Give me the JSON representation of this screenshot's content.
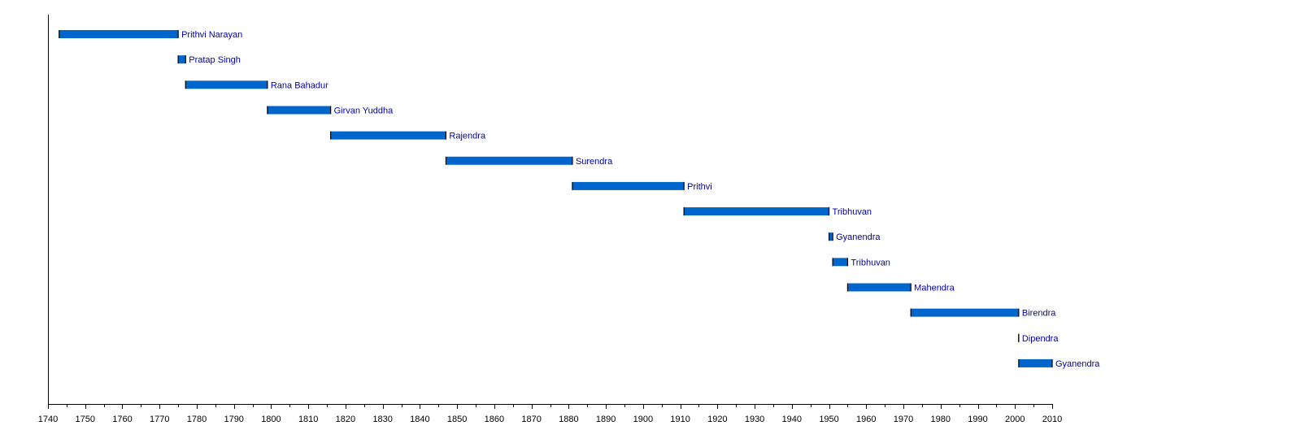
{
  "chart_data": {
    "type": "timeline",
    "xlim": [
      1740,
      2010
    ],
    "major_tick_step": 10,
    "minor_tick_step": 5,
    "tick_labels": [
      "1740",
      "1750",
      "1760",
      "1770",
      "1780",
      "1790",
      "1800",
      "1810",
      "1820",
      "1830",
      "1840",
      "1850",
      "1860",
      "1870",
      "1880",
      "1890",
      "1900",
      "1910",
      "1920",
      "1930",
      "1940",
      "1950",
      "1960",
      "1970",
      "1980",
      "1990",
      "2000",
      "2010"
    ],
    "grid": false,
    "bar_color": "#0066cc",
    "label_color": "#0000aa",
    "bars": [
      {
        "label": "Prithvi Narayan",
        "start": 1743,
        "end": 1775
      },
      {
        "label": "Pratap Singh",
        "start": 1775,
        "end": 1777
      },
      {
        "label": "Rana Bahadur",
        "start": 1777,
        "end": 1799
      },
      {
        "label": "Girvan Yuddha",
        "start": 1799,
        "end": 1816
      },
      {
        "label": "Rajendra",
        "start": 1816,
        "end": 1847
      },
      {
        "label": "Surendra",
        "start": 1847,
        "end": 1881
      },
      {
        "label": "Prithvi",
        "start": 1881,
        "end": 1911
      },
      {
        "label": "Tribhuvan",
        "start": 1911,
        "end": 1950
      },
      {
        "label": "Gyanendra",
        "start": 1950,
        "end": 1951
      },
      {
        "label": "Tribhuvan",
        "start": 1951,
        "end": 1955
      },
      {
        "label": "Mahendra",
        "start": 1955,
        "end": 1972
      },
      {
        "label": "Birendra",
        "start": 1972,
        "end": 2001
      },
      {
        "label": "Dipendra",
        "start": 2001,
        "end": 2001
      },
      {
        "label": "Gyanendra",
        "start": 2001,
        "end": 2010
      }
    ]
  }
}
